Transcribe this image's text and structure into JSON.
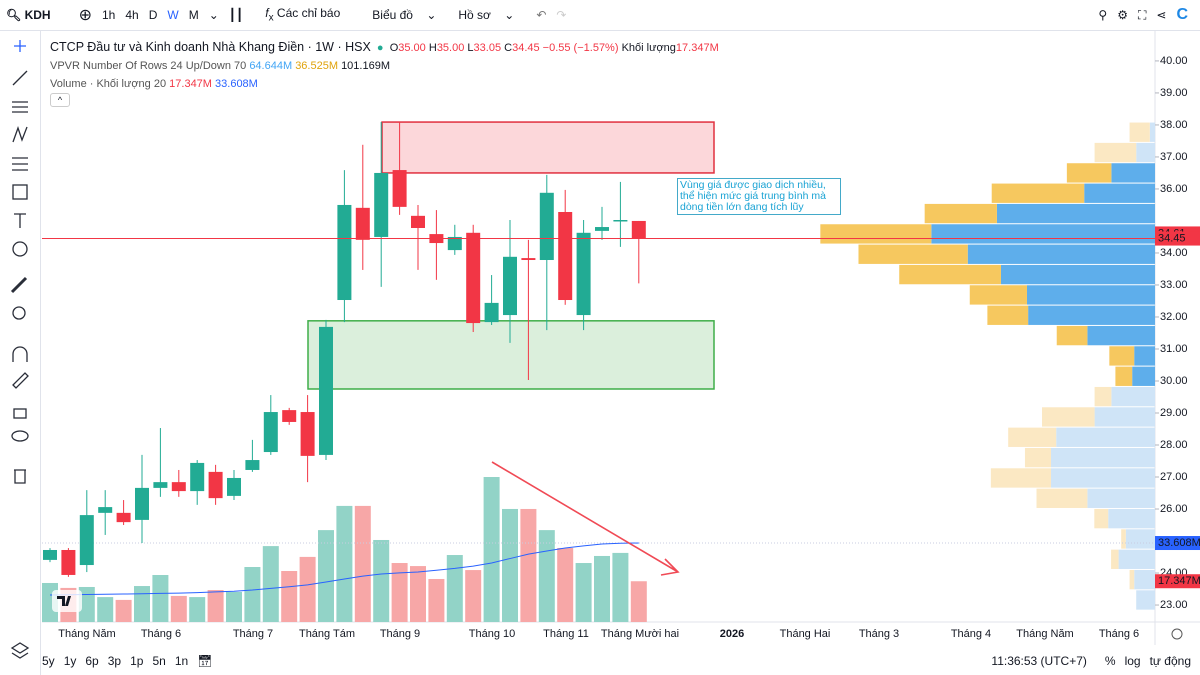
{
  "toolbar": {
    "symbol": "KDH",
    "intervals": [
      "1h",
      "4h",
      "D",
      "W",
      "M"
    ],
    "indicators": "Các chỉ báo",
    "chart_type": "Biểu đồ",
    "profile": "Hồ sơ"
  },
  "legend": {
    "title": "CTCP Đầu tư và Kinh doanh Nhà Khang Điền · 1W · HSX",
    "o_label": "O",
    "o": "35.00",
    "h_label": "H",
    "h": "35.00",
    "l_label": "L",
    "l": "33.05",
    "c_label": "C",
    "c": "34.45",
    "change": "−0.55 (−1.57%)",
    "volume_label": "Khối lượng",
    "volume": "17.347M",
    "vpvr": "VPVR Number Of Rows 24 Up/Down 70",
    "vpvr_up": "64.644M",
    "vpvr_down": "36.525M",
    "vpvr_total": "101.169M",
    "volume_study": "Volume · Khối lượng 20",
    "volume_value": "17.347M",
    "volume_ma": "33.608M"
  },
  "chart": {
    "type": "candlestick",
    "up_color": "#22ab94",
    "down_color": "#f23645",
    "volume_up_color": "#92d3c7",
    "volume_down_color": "#f7a7a7",
    "ma_color": "#2962ff",
    "ylim": [
      22.47,
      40.81
    ],
    "yticks": [
      {
        "value": 40,
        "label": "40.00"
      },
      {
        "value": 39,
        "label": "39.00"
      },
      {
        "value": 38,
        "label": "38.00"
      },
      {
        "value": 37,
        "label": "37.00"
      },
      {
        "value": 36,
        "label": "36.00"
      },
      {
        "value": 34,
        "label": "34.00"
      },
      {
        "value": 33,
        "label": "33.00"
      },
      {
        "value": 32,
        "label": "32.00"
      },
      {
        "value": 31,
        "label": "31.00"
      },
      {
        "value": 30,
        "label": "30.00"
      },
      {
        "value": 29,
        "label": "29.00"
      },
      {
        "value": 28,
        "label": "28.00"
      },
      {
        "value": 27,
        "label": "27.00"
      },
      {
        "value": 26,
        "label": "26.00"
      },
      {
        "value": 24,
        "label": "24.00"
      },
      {
        "value": 23,
        "label": "23.00"
      }
    ],
    "candles": [
      {
        "o": 24.41,
        "h": 24.78,
        "l": 24.34,
        "c": 24.72
      },
      {
        "o": 24.72,
        "h": 24.78,
        "l": 23.88,
        "c": 23.94
      },
      {
        "o": 24.25,
        "h": 26.59,
        "l": 24.03,
        "c": 25.81
      },
      {
        "o": 25.88,
        "h": 26.59,
        "l": 25.19,
        "c": 26.06
      },
      {
        "o": 25.88,
        "h": 26.28,
        "l": 25.5,
        "c": 25.59
      },
      {
        "o": 25.66,
        "h": 27.69,
        "l": 24.94,
        "c": 26.66
      },
      {
        "o": 26.66,
        "h": 28.53,
        "l": 26.38,
        "c": 26.84
      },
      {
        "o": 26.84,
        "h": 27.22,
        "l": 26.38,
        "c": 26.56
      },
      {
        "o": 26.56,
        "h": 27.53,
        "l": 26.13,
        "c": 27.44
      },
      {
        "o": 27.16,
        "h": 27.38,
        "l": 26.13,
        "c": 26.34
      },
      {
        "o": 26.41,
        "h": 27.22,
        "l": 26.28,
        "c": 26.97
      },
      {
        "o": 27.22,
        "h": 28.16,
        "l": 27.16,
        "c": 27.53
      },
      {
        "o": 27.78,
        "h": 29.56,
        "l": 27.69,
        "c": 29.03
      },
      {
        "o": 29.09,
        "h": 29.16,
        "l": 28.63,
        "c": 28.72
      },
      {
        "o": 29.03,
        "h": 29.56,
        "l": 26.84,
        "c": 27.66
      },
      {
        "o": 27.69,
        "h": 31.91,
        "l": 27.53,
        "c": 31.69
      },
      {
        "o": 32.53,
        "h": 36.59,
        "l": 31.84,
        "c": 35.5
      },
      {
        "o": 35.41,
        "h": 37.38,
        "l": 33.47,
        "c": 34.41
      },
      {
        "o": 34.5,
        "h": 38.09,
        "l": 32.94,
        "c": 36.5
      },
      {
        "o": 36.59,
        "h": 38.09,
        "l": 35.19,
        "c": 35.44
      },
      {
        "o": 35.16,
        "h": 35.5,
        "l": 33.47,
        "c": 34.78
      },
      {
        "o": 34.59,
        "h": 35.34,
        "l": 33.16,
        "c": 34.31
      },
      {
        "o": 34.09,
        "h": 34.88,
        "l": 33.94,
        "c": 34.5
      },
      {
        "o": 34.63,
        "h": 34.88,
        "l": 31.53,
        "c": 31.81
      },
      {
        "o": 31.84,
        "h": 33.31,
        "l": 31.75,
        "c": 32.44
      },
      {
        "o": 32.06,
        "h": 35.03,
        "l": 31.19,
        "c": 33.88
      },
      {
        "o": 33.84,
        "h": 34.41,
        "l": 30.03,
        "c": 33.78
      },
      {
        "o": 33.78,
        "h": 36.44,
        "l": 31.59,
        "c": 35.88
      },
      {
        "o": 35.28,
        "h": 35.97,
        "l": 32.38,
        "c": 32.53
      },
      {
        "o": 32.06,
        "h": 35.03,
        "l": 31.59,
        "c": 34.63
      },
      {
        "o": 34.69,
        "h": 35.44,
        "l": 34.41,
        "c": 34.81
      },
      {
        "o": 35.0,
        "h": 36.22,
        "l": 34.19,
        "c": 35.03
      },
      {
        "o": 35.0,
        "h": 35.0,
        "l": 33.05,
        "c": 34.45
      }
    ],
    "volume": [
      16.6,
      14.5,
      14.9,
      10.6,
      9.4,
      15.3,
      20,
      11.1,
      10.6,
      13.6,
      12.8,
      23.4,
      32.3,
      21.7,
      27.7,
      39.1,
      49.4,
      49.4,
      34.9,
      25.1,
      23.8,
      18.3,
      28.5,
      22.1,
      61.7,
      48.1,
      48.1,
      39.1,
      31.5,
      25.1,
      28.1,
      29.4,
      17.347
    ],
    "volume_ma": [
      11.5,
      11.6,
      11.7,
      11.8,
      11.9,
      12.0,
      12.2,
      12.3,
      12.5,
      12.8,
      13.1,
      13.6,
      14.3,
      15.0,
      15.8,
      17.0,
      18.3,
      19.5,
      20.4,
      20.9,
      21.3,
      22.0,
      22.8,
      23.8,
      25.1,
      27.0,
      28.9,
      30.2,
      31.5,
      32.4,
      33.2,
      33.5,
      33.608
    ],
    "volume_tag": "17.347M",
    "ma_tag": "33.608M",
    "price_tags": [
      {
        "value": 34.61,
        "label": "34.61"
      },
      {
        "value": 34.45,
        "label": "34.45"
      }
    ],
    "vpvr": {
      "high": 38.09,
      "low": 22.84,
      "value_area_high": 36.84,
      "value_area_low": 29.88,
      "up_color": "#5eaeeb",
      "down_color": "#f6c85f",
      "up_pale": "#cfe4f7",
      "down_pale": "#fbe8c3",
      "up": [
        0.18,
        0.65,
        1.51,
        2.45,
        5.47,
        7.74,
        6.48,
        5.33,
        4.43,
        4.39,
        2.34,
        0.72,
        0.79,
        1.51,
        2.09,
        3.42,
        3.6,
        3.6,
        2.34,
        1.62,
        1.01,
        1.26,
        0.72,
        0.65
      ],
      "down": [
        0.7,
        1.44,
        1.54,
        3.2,
        2.5,
        3.84,
        3.78,
        3.52,
        1.98,
        1.41,
        1.06,
        0.86,
        0.58,
        0.58,
        1.82,
        1.66,
        0.9,
        2.08,
        1.76,
        0.48,
        0.16,
        0.26,
        0.16,
        0
      ]
    },
    "zones": [
      {
        "high": 38.09,
        "low": 36.5,
        "fill": "rgba(242,54,69,0.2)",
        "stroke": "#e0303f"
      },
      {
        "high": 31.88,
        "low": 29.75,
        "fill": "rgba(76,175,80,0.2)",
        "stroke": "#3fae49"
      }
    ]
  },
  "annotation": "Vùng giá được giao dịch nhiều, thể hiện mức giá trung bình mà dòng tiền lớn đang tích lũy",
  "time_axis": [
    "Tháng Năm",
    "Tháng 6",
    "Tháng 7",
    "Tháng Tám",
    "Tháng 9",
    "Tháng 10",
    "Tháng 11",
    "Tháng Mười hai",
    "2026",
    "Tháng Hai",
    "Tháng 3",
    "Tháng 4",
    "Tháng Năm",
    "Tháng 6"
  ],
  "footer": {
    "ranges": [
      "5y",
      "1y",
      "6p",
      "3p",
      "1p",
      "5n",
      "1n"
    ],
    "clock": "11:36:53 (UTC+7)",
    "percent": "%",
    "log": "log",
    "auto": "tự động"
  }
}
